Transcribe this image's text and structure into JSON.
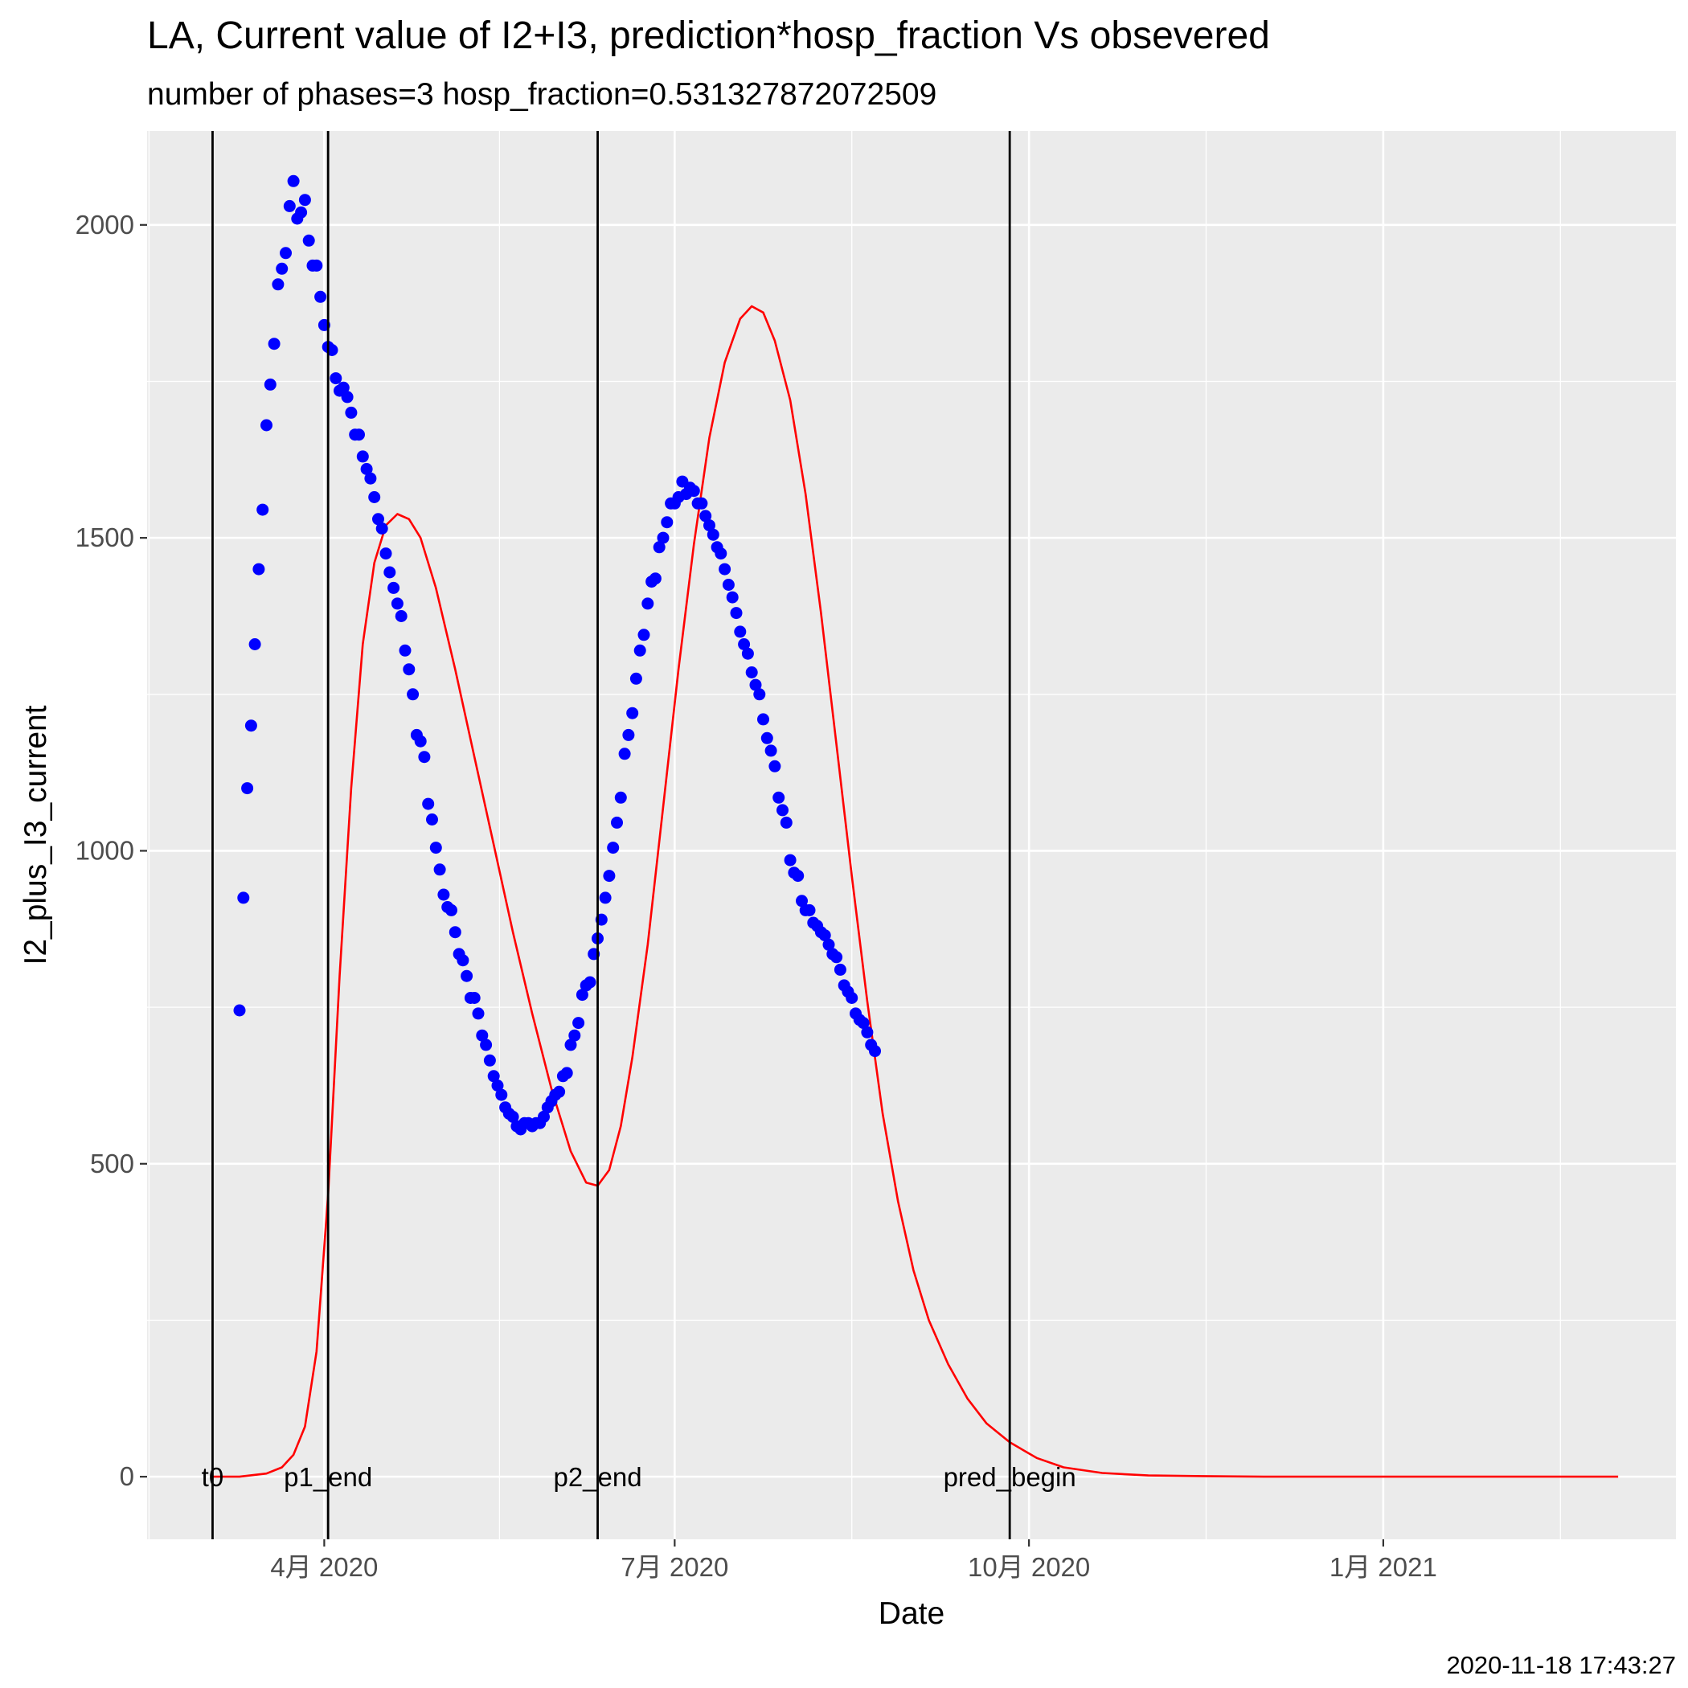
{
  "chart_data": {
    "type": "scatter",
    "title": "LA, Current value of I2+I3, prediction*hosp_fraction Vs obsevered",
    "subtitle": "number of phases=3   hosp_fraction=0.531327872072509",
    "xlabel": "Date",
    "ylabel": "I2_plus_I3_current",
    "x_tick_labels": [
      {
        "date": "2020-04-01",
        "label": "4月 2020"
      },
      {
        "date": "2020-07-01",
        "label": "7月 2020"
      },
      {
        "date": "2020-10-01",
        "label": "10月 2020"
      },
      {
        "date": "2021-01-01",
        "label": "1月 2021"
      }
    ],
    "y_ticks": [
      0,
      500,
      1000,
      1500,
      2000
    ],
    "xlim": [
      "2020-02-15",
      "2021-03-18"
    ],
    "ylim": [
      -100,
      2150
    ],
    "grid": true,
    "vertical_lines": [
      {
        "date": "2020-03-03",
        "label": "t0"
      },
      {
        "date": "2020-04-02",
        "label": "p1_end"
      },
      {
        "date": "2020-06-11",
        "label": "p2_end"
      },
      {
        "date": "2020-09-26",
        "label": "pred_begin"
      }
    ],
    "timestamp": "2020-11-18 17:43:27",
    "series": [
      {
        "kind": "points",
        "color": "#0000ff",
        "points": [
          [
            "2020-03-10",
            745
          ],
          [
            "2020-03-11",
            925
          ],
          [
            "2020-03-12",
            1100
          ],
          [
            "2020-03-13",
            1200
          ],
          [
            "2020-03-14",
            1330
          ],
          [
            "2020-03-15",
            1450
          ],
          [
            "2020-03-16",
            1545
          ],
          [
            "2020-03-17",
            1680
          ],
          [
            "2020-03-18",
            1745
          ],
          [
            "2020-03-19",
            1810
          ],
          [
            "2020-03-20",
            1905
          ],
          [
            "2020-03-21",
            1930
          ],
          [
            "2020-03-22",
            1955
          ],
          [
            "2020-03-23",
            2030
          ],
          [
            "2020-03-24",
            2070
          ],
          [
            "2020-03-25",
            2010
          ],
          [
            "2020-03-26",
            2020
          ],
          [
            "2020-03-27",
            2040
          ],
          [
            "2020-03-28",
            1975
          ],
          [
            "2020-03-29",
            1935
          ],
          [
            "2020-03-30",
            1935
          ],
          [
            "2020-03-31",
            1885
          ],
          [
            "2020-04-01",
            1840
          ],
          [
            "2020-04-02",
            1805
          ],
          [
            "2020-04-03",
            1800
          ],
          [
            "2020-04-04",
            1755
          ],
          [
            "2020-04-05",
            1735
          ],
          [
            "2020-04-06",
            1740
          ],
          [
            "2020-04-07",
            1725
          ],
          [
            "2020-04-08",
            1700
          ],
          [
            "2020-04-09",
            1665
          ],
          [
            "2020-04-10",
            1665
          ],
          [
            "2020-04-11",
            1630
          ],
          [
            "2020-04-12",
            1610
          ],
          [
            "2020-04-13",
            1595
          ],
          [
            "2020-04-14",
            1565
          ],
          [
            "2020-04-15",
            1530
          ],
          [
            "2020-04-16",
            1515
          ],
          [
            "2020-04-17",
            1475
          ],
          [
            "2020-04-18",
            1445
          ],
          [
            "2020-04-19",
            1420
          ],
          [
            "2020-04-20",
            1395
          ],
          [
            "2020-04-21",
            1375
          ],
          [
            "2020-04-22",
            1320
          ],
          [
            "2020-04-23",
            1290
          ],
          [
            "2020-04-24",
            1250
          ],
          [
            "2020-04-25",
            1185
          ],
          [
            "2020-04-26",
            1175
          ],
          [
            "2020-04-27",
            1150
          ],
          [
            "2020-04-28",
            1075
          ],
          [
            "2020-04-29",
            1050
          ],
          [
            "2020-04-30",
            1005
          ],
          [
            "2020-05-01",
            970
          ],
          [
            "2020-05-02",
            930
          ],
          [
            "2020-05-03",
            910
          ],
          [
            "2020-05-04",
            905
          ],
          [
            "2020-05-05",
            870
          ],
          [
            "2020-05-06",
            835
          ],
          [
            "2020-05-07",
            825
          ],
          [
            "2020-05-08",
            800
          ],
          [
            "2020-05-09",
            765
          ],
          [
            "2020-05-10",
            765
          ],
          [
            "2020-05-11",
            740
          ],
          [
            "2020-05-12",
            705
          ],
          [
            "2020-05-13",
            690
          ],
          [
            "2020-05-14",
            665
          ],
          [
            "2020-05-15",
            640
          ],
          [
            "2020-05-16",
            625
          ],
          [
            "2020-05-17",
            610
          ],
          [
            "2020-05-18",
            590
          ],
          [
            "2020-05-19",
            580
          ],
          [
            "2020-05-20",
            575
          ],
          [
            "2020-05-21",
            560
          ],
          [
            "2020-05-22",
            555
          ],
          [
            "2020-05-23",
            565
          ],
          [
            "2020-05-24",
            565
          ],
          [
            "2020-05-25",
            560
          ],
          [
            "2020-05-26",
            565
          ],
          [
            "2020-05-27",
            565
          ],
          [
            "2020-05-28",
            575
          ],
          [
            "2020-05-29",
            590
          ],
          [
            "2020-05-30",
            600
          ],
          [
            "2020-05-31",
            610
          ],
          [
            "2020-06-01",
            615
          ],
          [
            "2020-06-02",
            640
          ],
          [
            "2020-06-03",
            645
          ],
          [
            "2020-06-04",
            690
          ],
          [
            "2020-06-05",
            705
          ],
          [
            "2020-06-06",
            725
          ],
          [
            "2020-06-07",
            770
          ],
          [
            "2020-06-08",
            785
          ],
          [
            "2020-06-09",
            790
          ],
          [
            "2020-06-10",
            835
          ],
          [
            "2020-06-11",
            860
          ],
          [
            "2020-06-12",
            890
          ],
          [
            "2020-06-13",
            925
          ],
          [
            "2020-06-14",
            960
          ],
          [
            "2020-06-15",
            1005
          ],
          [
            "2020-06-16",
            1045
          ],
          [
            "2020-06-17",
            1085
          ],
          [
            "2020-06-18",
            1155
          ],
          [
            "2020-06-19",
            1185
          ],
          [
            "2020-06-20",
            1220
          ],
          [
            "2020-06-21",
            1275
          ],
          [
            "2020-06-22",
            1320
          ],
          [
            "2020-06-23",
            1345
          ],
          [
            "2020-06-24",
            1395
          ],
          [
            "2020-06-25",
            1430
          ],
          [
            "2020-06-26",
            1435
          ],
          [
            "2020-06-27",
            1485
          ],
          [
            "2020-06-28",
            1500
          ],
          [
            "2020-06-29",
            1525
          ],
          [
            "2020-06-30",
            1555
          ],
          [
            "2020-07-01",
            1555
          ],
          [
            "2020-07-02",
            1565
          ],
          [
            "2020-07-03",
            1590
          ],
          [
            "2020-07-04",
            1570
          ],
          [
            "2020-07-05",
            1580
          ],
          [
            "2020-07-06",
            1575
          ],
          [
            "2020-07-07",
            1555
          ],
          [
            "2020-07-08",
            1555
          ],
          [
            "2020-07-09",
            1535
          ],
          [
            "2020-07-10",
            1520
          ],
          [
            "2020-07-11",
            1505
          ],
          [
            "2020-07-12",
            1485
          ],
          [
            "2020-07-13",
            1475
          ],
          [
            "2020-07-14",
            1450
          ],
          [
            "2020-07-15",
            1425
          ],
          [
            "2020-07-16",
            1405
          ],
          [
            "2020-07-17",
            1380
          ],
          [
            "2020-07-18",
            1350
          ],
          [
            "2020-07-19",
            1330
          ],
          [
            "2020-07-20",
            1315
          ],
          [
            "2020-07-21",
            1285
          ],
          [
            "2020-07-22",
            1265
          ],
          [
            "2020-07-23",
            1250
          ],
          [
            "2020-07-24",
            1210
          ],
          [
            "2020-07-25",
            1180
          ],
          [
            "2020-07-26",
            1160
          ],
          [
            "2020-07-27",
            1135
          ],
          [
            "2020-07-28",
            1085
          ],
          [
            "2020-07-29",
            1065
          ],
          [
            "2020-07-30",
            1045
          ],
          [
            "2020-07-31",
            985
          ],
          [
            "2020-08-01",
            965
          ],
          [
            "2020-08-02",
            960
          ],
          [
            "2020-08-03",
            920
          ],
          [
            "2020-08-04",
            905
          ],
          [
            "2020-08-05",
            905
          ],
          [
            "2020-08-06",
            885
          ],
          [
            "2020-08-07",
            880
          ],
          [
            "2020-08-08",
            870
          ],
          [
            "2020-08-09",
            865
          ],
          [
            "2020-08-10",
            850
          ],
          [
            "2020-08-11",
            835
          ],
          [
            "2020-08-12",
            830
          ],
          [
            "2020-08-13",
            810
          ],
          [
            "2020-08-14",
            785
          ],
          [
            "2020-08-15",
            775
          ],
          [
            "2020-08-16",
            765
          ],
          [
            "2020-08-17",
            740
          ],
          [
            "2020-08-18",
            730
          ],
          [
            "2020-08-19",
            725
          ],
          [
            "2020-08-20",
            710
          ],
          [
            "2020-08-21",
            690
          ],
          [
            "2020-08-22",
            680
          ]
        ]
      },
      {
        "kind": "line",
        "color": "#ff0000",
        "points": [
          [
            "2020-03-03",
            0
          ],
          [
            "2020-03-10",
            0
          ],
          [
            "2020-03-17",
            5
          ],
          [
            "2020-03-21",
            15
          ],
          [
            "2020-03-24",
            35
          ],
          [
            "2020-03-27",
            80
          ],
          [
            "2020-03-30",
            200
          ],
          [
            "2020-04-02",
            450
          ],
          [
            "2020-04-05",
            800
          ],
          [
            "2020-04-08",
            1100
          ],
          [
            "2020-04-11",
            1330
          ],
          [
            "2020-04-14",
            1460
          ],
          [
            "2020-04-17",
            1520
          ],
          [
            "2020-04-20",
            1538
          ],
          [
            "2020-04-23",
            1530
          ],
          [
            "2020-04-26",
            1500
          ],
          [
            "2020-04-30",
            1420
          ],
          [
            "2020-05-05",
            1290
          ],
          [
            "2020-05-10",
            1150
          ],
          [
            "2020-05-15",
            1010
          ],
          [
            "2020-05-20",
            870
          ],
          [
            "2020-05-25",
            740
          ],
          [
            "2020-05-30",
            620
          ],
          [
            "2020-06-04",
            520
          ],
          [
            "2020-06-08",
            470
          ],
          [
            "2020-06-11",
            465
          ],
          [
            "2020-06-14",
            490
          ],
          [
            "2020-06-17",
            560
          ],
          [
            "2020-06-20",
            670
          ],
          [
            "2020-06-24",
            850
          ],
          [
            "2020-06-28",
            1070
          ],
          [
            "2020-07-02",
            1290
          ],
          [
            "2020-07-06",
            1490
          ],
          [
            "2020-07-10",
            1660
          ],
          [
            "2020-07-14",
            1780
          ],
          [
            "2020-07-18",
            1850
          ],
          [
            "2020-07-21",
            1870
          ],
          [
            "2020-07-24",
            1860
          ],
          [
            "2020-07-27",
            1815
          ],
          [
            "2020-07-31",
            1720
          ],
          [
            "2020-08-04",
            1570
          ],
          [
            "2020-08-08",
            1380
          ],
          [
            "2020-08-12",
            1170
          ],
          [
            "2020-08-16",
            960
          ],
          [
            "2020-08-20",
            760
          ],
          [
            "2020-08-24",
            580
          ],
          [
            "2020-08-28",
            440
          ],
          [
            "2020-09-01",
            330
          ],
          [
            "2020-09-05",
            250
          ],
          [
            "2020-09-10",
            180
          ],
          [
            "2020-09-15",
            125
          ],
          [
            "2020-09-20",
            85
          ],
          [
            "2020-09-26",
            55
          ],
          [
            "2020-10-03",
            30
          ],
          [
            "2020-10-10",
            15
          ],
          [
            "2020-10-20",
            6
          ],
          [
            "2020-11-01",
            2
          ],
          [
            "2020-11-15",
            1
          ],
          [
            "2020-12-01",
            0
          ],
          [
            "2021-01-01",
            0
          ],
          [
            "2021-02-01",
            0
          ],
          [
            "2021-03-03",
            0
          ]
        ]
      }
    ]
  }
}
